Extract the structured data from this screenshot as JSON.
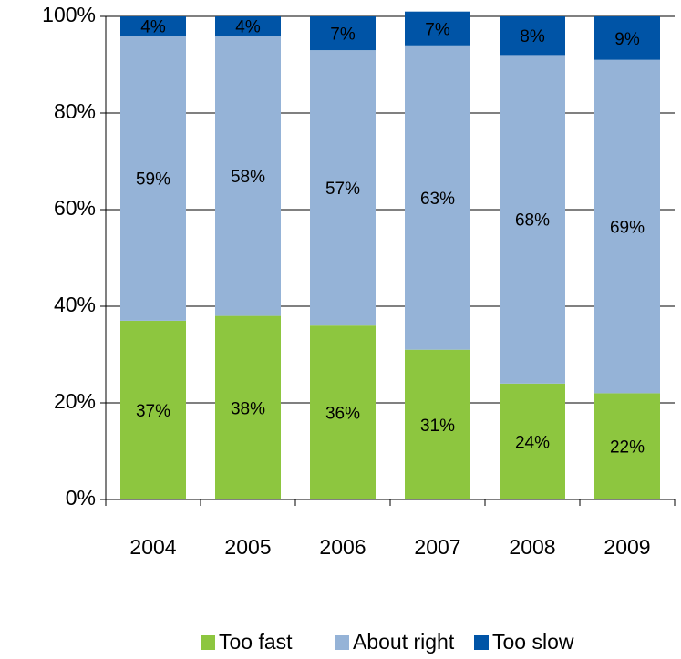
{
  "chart_data": {
    "type": "stacked_bar",
    "categories": [
      "2004",
      "2005",
      "2006",
      "2007",
      "2008",
      "2009"
    ],
    "series": [
      {
        "name": "Too fast",
        "color": "#8dc63f",
        "values": [
          37,
          38,
          36,
          31,
          24,
          22
        ],
        "value_labels": [
          "37%",
          "38%",
          "36%",
          "31%",
          "24%",
          "22%"
        ]
      },
      {
        "name": "About right",
        "color": "#95b3d7",
        "values": [
          59,
          58,
          57,
          63,
          68,
          69
        ],
        "value_labels": [
          "59%",
          "58%",
          "57%",
          "63%",
          "68%",
          "69%"
        ]
      },
      {
        "name": "Too slow",
        "color": "#0054a6",
        "values": [
          4,
          4,
          7,
          7,
          8,
          9
        ],
        "value_labels": [
          "4%",
          "4%",
          "7%",
          "7%",
          "8%",
          "9%"
        ]
      }
    ],
    "ylim": [
      0,
      100
    ],
    "yticks": [
      {
        "value": 0,
        "label": "0%"
      },
      {
        "value": 20,
        "label": "20%"
      },
      {
        "value": 40,
        "label": "40%"
      },
      {
        "value": 60,
        "label": "60%"
      },
      {
        "value": 80,
        "label": "80%"
      },
      {
        "value": 100,
        "label": "100%"
      }
    ],
    "grid": true,
    "legend": "bottom"
  }
}
